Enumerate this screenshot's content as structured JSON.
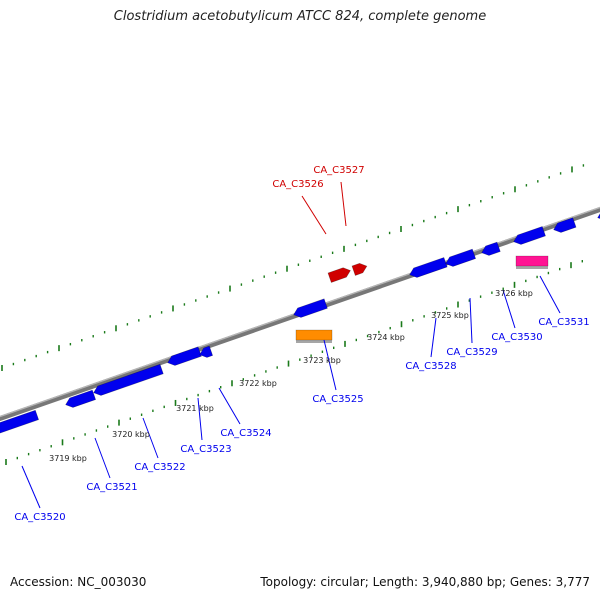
{
  "title": "Clostridium acetobutylicum ATCC 824, complete genome",
  "footer": {
    "accession": "Accession: NC_003030",
    "summary": "Topology: circular; Length: 3,940,880 bp; Genes: 3,777"
  },
  "colors": {
    "forward_gene": "#d00000",
    "reverse_gene": "#0000ee",
    "orange_gene": "#ff8c00",
    "pink_gene": "#ff1493",
    "backbone": "#8a8a8a",
    "tick": "#1a7a1a"
  },
  "scale_labels": [
    {
      "label": "3719 kbp"
    },
    {
      "label": "3720 kbp"
    },
    {
      "label": "3721 kbp"
    },
    {
      "label": "3722 kbp"
    },
    {
      "label": "3723 kbp"
    },
    {
      "label": "3724 kbp"
    },
    {
      "label": "3725 kbp"
    },
    {
      "label": "3726 kbp"
    }
  ],
  "gene_labels": [
    {
      "label": "CA_C3520",
      "strand": "reverse"
    },
    {
      "label": "CA_C3521",
      "strand": "reverse"
    },
    {
      "label": "CA_C3522",
      "strand": "reverse"
    },
    {
      "label": "CA_C3523",
      "strand": "reverse"
    },
    {
      "label": "CA_C3524",
      "strand": "reverse"
    },
    {
      "label": "CA_C3525",
      "strand": "reverse"
    },
    {
      "label": "CA_C3526",
      "strand": "forward"
    },
    {
      "label": "CA_C3527",
      "strand": "forward"
    },
    {
      "label": "CA_C3528",
      "strand": "reverse"
    },
    {
      "label": "CA_C3529",
      "strand": "reverse"
    },
    {
      "label": "CA_C3530",
      "strand": "reverse"
    },
    {
      "label": "CA_C3531",
      "strand": "reverse"
    }
  ]
}
